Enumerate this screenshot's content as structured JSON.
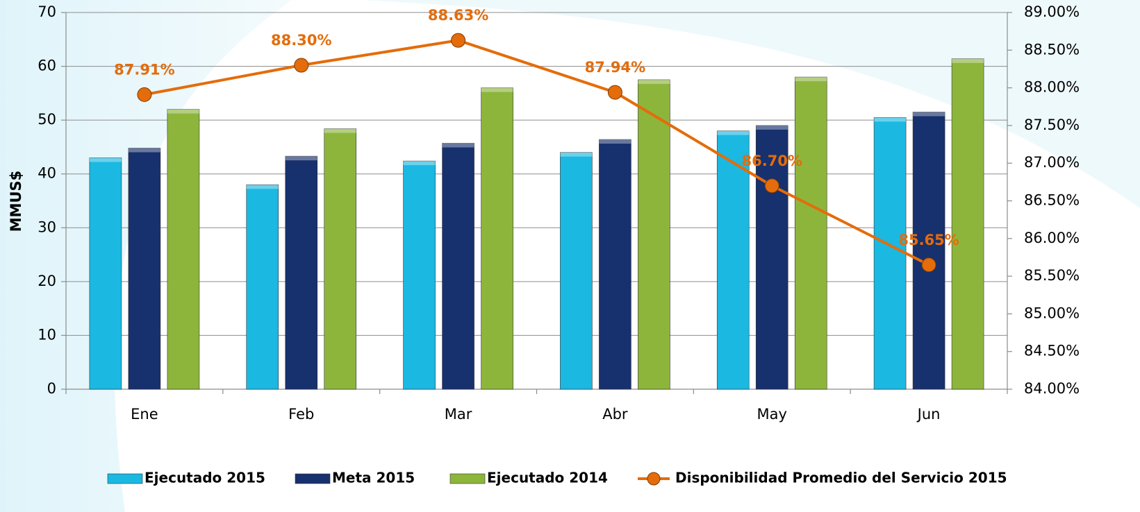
{
  "chart_data": {
    "type": "bar",
    "y_label": "MMUS$",
    "categories": [
      "Ene",
      "Feb",
      "Mar",
      "Abr",
      "May",
      "Jun"
    ],
    "series": [
      {
        "name": "Ejecutado 2015",
        "color": "#1bb8e2",
        "values": [
          43,
          38,
          42.4,
          44,
          48,
          50.5
        ]
      },
      {
        "name": "Meta 2015",
        "color": "#17306e",
        "values": [
          44.8,
          43.3,
          45.7,
          46.4,
          49,
          51.5
        ]
      },
      {
        "name": "Ejecutado 2014",
        "color": "#8db53c",
        "values": [
          52,
          48.4,
          56,
          57.5,
          58,
          61.4
        ]
      },
      {
        "name": "Disponibilidad Promedio del Servicio 2015",
        "color": "#e46c0a",
        "type": "line",
        "axis": "y2",
        "values": [
          87.91,
          88.3,
          88.63,
          87.94,
          86.7,
          85.65
        ],
        "value_labels": [
          "87.91%",
          "88.30%",
          "88.63%",
          "87.94%",
          "86.70%",
          "85.65%"
        ]
      }
    ],
    "ylim": [
      0,
      70
    ],
    "yticks": [
      0,
      10,
      20,
      30,
      40,
      50,
      60,
      70
    ],
    "y2lim": [
      84,
      89
    ],
    "y2ticks": [
      {
        "value": 84,
        "label": "84.00%"
      },
      {
        "value": 84.5,
        "label": "84.50%"
      },
      {
        "value": 85,
        "label": "85.00%"
      },
      {
        "value": 85.5,
        "label": "85.50%"
      },
      {
        "value": 86,
        "label": "86.00%"
      },
      {
        "value": 86.5,
        "label": "86.50%"
      },
      {
        "value": 87,
        "label": "87.00%"
      },
      {
        "value": 87.5,
        "label": "87.50%"
      },
      {
        "value": 88,
        "label": "88.00%"
      },
      {
        "value": 88.5,
        "label": "88.50%"
      },
      {
        "value": 89,
        "label": "89.00%"
      }
    ],
    "grid": true,
    "legend": "bottom"
  }
}
